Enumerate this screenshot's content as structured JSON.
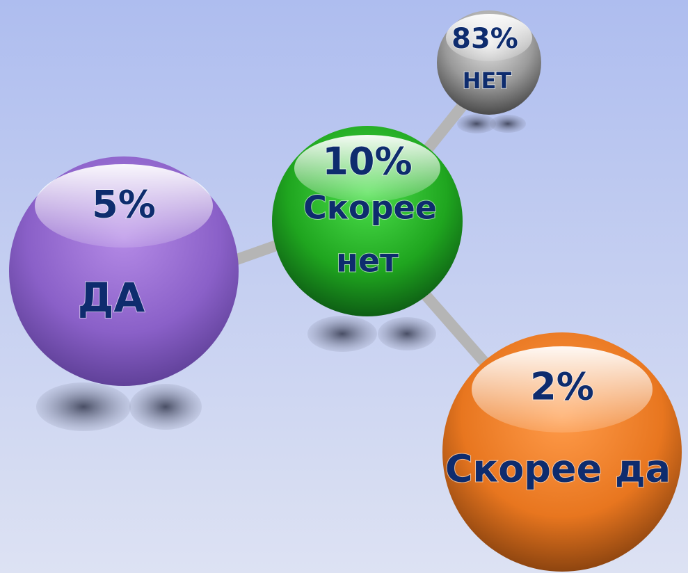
{
  "nodes": [
    {
      "value": "5%",
      "label": "ДА"
    },
    {
      "value": "10%",
      "label": [
        "Скорее",
        "нет"
      ]
    },
    {
      "value": "83%",
      "label": "НЕТ"
    },
    {
      "value": "2%",
      "label": "Скорее да"
    }
  ]
}
